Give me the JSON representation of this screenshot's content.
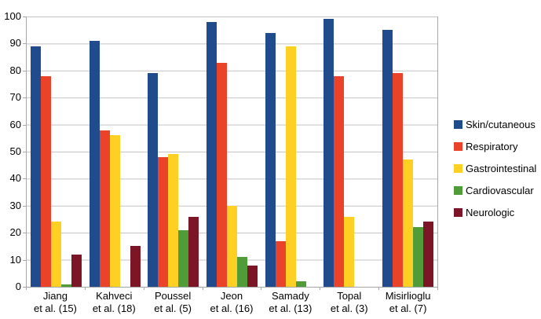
{
  "chart_data": {
    "type": "bar",
    "title": "",
    "xlabel": "",
    "ylabel": "",
    "ylim": [
      0,
      100
    ],
    "y_ticks": [
      100,
      90,
      80,
      70,
      60,
      50,
      40,
      30,
      20,
      10,
      0
    ],
    "grid": true,
    "legend_position": "right",
    "gridline_color": "#c3c3c3",
    "axis_color": "#a6a7a9",
    "categories": [
      {
        "line1": "Jiang",
        "line2": "et al. (15)"
      },
      {
        "line1": "Kahveci",
        "line2": "et al. (18)"
      },
      {
        "line1": "Poussel",
        "line2": "et al. (5)"
      },
      {
        "line1": "Jeon",
        "line2": "et al. (16)"
      },
      {
        "line1": "Samady",
        "line2": "et al. (13)"
      },
      {
        "line1": "Topal",
        "line2": "et al. (3)"
      },
      {
        "line1": "Misirlioglu",
        "line2": "et al. (7)"
      }
    ],
    "series": [
      {
        "name": "Skin/cutaneous",
        "color": "#204c8d",
        "values": [
          89,
          91,
          79,
          98,
          94,
          99,
          95
        ]
      },
      {
        "name": "Respiratory",
        "color": "#eb432a",
        "values": [
          78,
          58,
          48,
          83,
          17,
          78,
          79
        ]
      },
      {
        "name": "Gastrointestinal",
        "color": "#fdd023",
        "values": [
          24,
          56,
          49,
          30,
          89,
          26,
          47
        ]
      },
      {
        "name": "Cardiovascular",
        "color": "#4f9c39",
        "values": [
          1,
          0,
          21,
          11,
          2,
          0,
          22
        ]
      },
      {
        "name": "Neurologic",
        "color": "#7c1626",
        "values": [
          12,
          15,
          26,
          8,
          0,
          0,
          24
        ]
      }
    ]
  }
}
